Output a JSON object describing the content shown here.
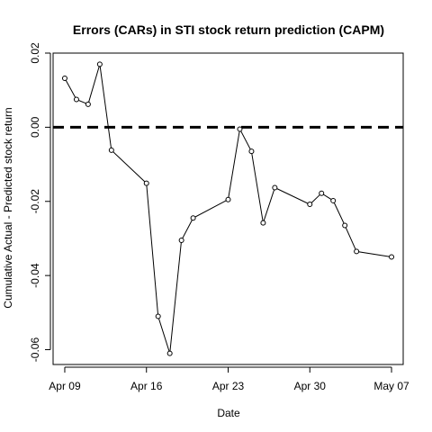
{
  "chart_data": {
    "type": "line",
    "title": "Errors (CARs) in STI stock return prediction (CAPM)",
    "xlabel": "Date",
    "ylabel": "Cumulative Actual - Predicted stock return",
    "x": [
      "2018-04-09",
      "2018-04-10",
      "2018-04-11",
      "2018-04-12",
      "2018-04-13",
      "2018-04-16",
      "2018-04-17",
      "2018-04-18",
      "2018-04-19",
      "2018-04-20",
      "2018-04-23",
      "2018-04-24",
      "2018-04-25",
      "2018-04-26",
      "2018-04-27",
      "2018-04-30",
      "2018-05-01",
      "2018-05-02",
      "2018-05-03",
      "2018-05-04",
      "2018-05-07"
    ],
    "series": [
      {
        "values": [
          0.0132,
          0.0075,
          0.0062,
          0.017,
          -0.0062,
          -0.0151,
          -0.051,
          -0.061,
          -0.0305,
          -0.0245,
          -0.0195,
          -0.0005,
          -0.0065,
          -0.0258,
          -0.0163,
          -0.0208,
          -0.0178,
          -0.0198,
          -0.0265,
          -0.0335,
          -0.035
        ]
      }
    ],
    "xlim": [
      "2018-04-08",
      "2018-05-08"
    ],
    "ylim": [
      -0.064,
      0.02
    ],
    "xticks": [
      {
        "date": "2018-04-09",
        "label": "Apr 09"
      },
      {
        "date": "2018-04-16",
        "label": "Apr 16"
      },
      {
        "date": "2018-04-23",
        "label": "Apr 23"
      },
      {
        "date": "2018-04-30",
        "label": "Apr 30"
      },
      {
        "date": "2018-05-07",
        "label": "May 07"
      }
    ],
    "yticks": [
      {
        "value": 0.02,
        "label": "0.02"
      },
      {
        "value": 0.0,
        "label": "0.00"
      },
      {
        "value": -0.02,
        "label": "-0.02"
      },
      {
        "value": -0.04,
        "label": "-0.04"
      },
      {
        "value": -0.06,
        "label": "-0.06"
      }
    ],
    "reference_line": {
      "y": 0,
      "style": "dashed"
    },
    "grid": false,
    "colors": {
      "line": "#000000",
      "marker_fill": "#ffffff",
      "axis": "#000000"
    }
  }
}
